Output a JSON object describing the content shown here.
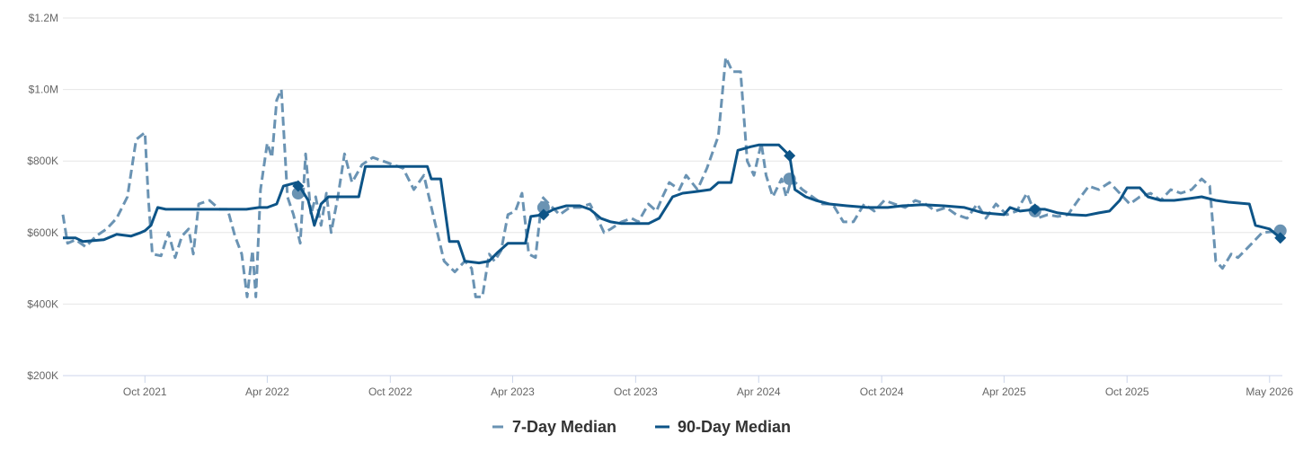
{
  "chart_data": {
    "type": "line",
    "title": "",
    "xlabel": "",
    "ylabel": "",
    "x_range": [
      "2021-06-01",
      "2026-05-20"
    ],
    "ylim": [
      200000,
      1200000
    ],
    "grid": "horizontal",
    "legend_position": "bottom-center",
    "y_ticks": [
      {
        "value": 200000,
        "label": "$200K"
      },
      {
        "value": 400000,
        "label": "$400K"
      },
      {
        "value": 600000,
        "label": "$600K"
      },
      {
        "value": 800000,
        "label": "$800K"
      },
      {
        "value": 1000000,
        "label": "$1.0M"
      },
      {
        "value": 1200000,
        "label": "$1.2M"
      }
    ],
    "x_ticks": [
      {
        "date": "2021-10-01",
        "label": "Oct 2021"
      },
      {
        "date": "2022-04-01",
        "label": "Apr 2022"
      },
      {
        "date": "2022-10-01",
        "label": "Oct 2022"
      },
      {
        "date": "2023-04-01",
        "label": "Apr 2023"
      },
      {
        "date": "2023-10-01",
        "label": "Oct 2023"
      },
      {
        "date": "2024-04-01",
        "label": "Apr 2024"
      },
      {
        "date": "2024-10-01",
        "label": "Oct 2024"
      },
      {
        "date": "2025-04-01",
        "label": "Apr 2025"
      },
      {
        "date": "2025-10-01",
        "label": "Oct 2025"
      },
      {
        "date": "2026-05-01",
        "label": "May 2026"
      }
    ],
    "series": [
      {
        "name": "7-Day Median",
        "color": "#6a93b3",
        "style": "dashed",
        "marker": "circle",
        "points": [
          [
            "2021-06-01",
            650000
          ],
          [
            "2021-06-08",
            570000
          ],
          [
            "2021-06-20",
            580000
          ],
          [
            "2021-07-05",
            560000
          ],
          [
            "2021-07-20",
            590000
          ],
          [
            "2021-08-05",
            610000
          ],
          [
            "2021-08-20",
            640000
          ],
          [
            "2021-09-05",
            700000
          ],
          [
            "2021-09-18",
            860000
          ],
          [
            "2021-10-01",
            880000
          ],
          [
            "2021-10-06",
            700000
          ],
          [
            "2021-10-12",
            540000
          ],
          [
            "2021-10-25",
            535000
          ],
          [
            "2021-11-05",
            600000
          ],
          [
            "2021-11-15",
            530000
          ],
          [
            "2021-11-25",
            590000
          ],
          [
            "2021-12-05",
            610000
          ],
          [
            "2021-12-12",
            540000
          ],
          [
            "2021-12-20",
            680000
          ],
          [
            "2022-01-05",
            690000
          ],
          [
            "2022-01-20",
            665000
          ],
          [
            "2022-02-01",
            665000
          ],
          [
            "2022-02-12",
            590000
          ],
          [
            "2022-02-22",
            540000
          ],
          [
            "2022-03-02",
            420000
          ],
          [
            "2022-03-10",
            550000
          ],
          [
            "2022-03-15",
            420000
          ],
          [
            "2022-03-22",
            720000
          ],
          [
            "2022-04-01",
            850000
          ],
          [
            "2022-04-08",
            810000
          ],
          [
            "2022-04-15",
            970000
          ],
          [
            "2022-04-22",
            1000000
          ],
          [
            "2022-05-01",
            700000
          ],
          [
            "2022-05-10",
            650000
          ],
          [
            "2022-05-20",
            570000
          ],
          [
            "2022-05-28",
            820000
          ],
          [
            "2022-06-05",
            650000
          ],
          [
            "2022-06-12",
            700000
          ],
          [
            "2022-06-20",
            620000
          ],
          [
            "2022-06-28",
            710000
          ],
          [
            "2022-07-05",
            600000
          ],
          [
            "2022-07-15",
            700000
          ],
          [
            "2022-07-25",
            820000
          ],
          [
            "2022-08-05",
            740000
          ],
          [
            "2022-08-20",
            790000
          ],
          [
            "2022-09-05",
            810000
          ],
          [
            "2022-09-20",
            800000
          ],
          [
            "2022-10-05",
            790000
          ],
          [
            "2022-10-20",
            780000
          ],
          [
            "2022-11-05",
            720000
          ],
          [
            "2022-11-20",
            760000
          ],
          [
            "2022-12-05",
            640000
          ],
          [
            "2022-12-20",
            520000
          ],
          [
            "2023-01-05",
            490000
          ],
          [
            "2023-01-20",
            520000
          ],
          [
            "2023-01-30",
            500000
          ],
          [
            "2023-02-05",
            420000
          ],
          [
            "2023-02-15",
            420000
          ],
          [
            "2023-02-25",
            540000
          ],
          [
            "2023-03-05",
            520000
          ],
          [
            "2023-03-15",
            550000
          ],
          [
            "2023-03-25",
            650000
          ],
          [
            "2023-04-05",
            660000
          ],
          [
            "2023-04-15",
            710000
          ],
          [
            "2023-04-25",
            540000
          ],
          [
            "2023-05-05",
            530000
          ],
          [
            "2023-05-15",
            700000
          ],
          [
            "2023-05-25",
            680000
          ],
          [
            "2023-06-10",
            650000
          ],
          [
            "2023-06-25",
            670000
          ],
          [
            "2023-07-10",
            670000
          ],
          [
            "2023-07-25",
            680000
          ],
          [
            "2023-08-05",
            640000
          ],
          [
            "2023-08-15",
            600000
          ],
          [
            "2023-08-25",
            610000
          ],
          [
            "2023-09-10",
            630000
          ],
          [
            "2023-09-25",
            640000
          ],
          [
            "2023-10-05",
            630000
          ],
          [
            "2023-10-20",
            680000
          ],
          [
            "2023-11-01",
            660000
          ],
          [
            "2023-11-10",
            700000
          ],
          [
            "2023-11-20",
            740000
          ],
          [
            "2023-12-05",
            720000
          ],
          [
            "2023-12-15",
            760000
          ],
          [
            "2024-01-01",
            720000
          ],
          [
            "2024-01-15",
            780000
          ],
          [
            "2024-02-01",
            870000
          ],
          [
            "2024-02-12",
            1090000
          ],
          [
            "2024-02-22",
            1050000
          ],
          [
            "2024-03-05",
            1050000
          ],
          [
            "2024-03-15",
            800000
          ],
          [
            "2024-03-25",
            760000
          ],
          [
            "2024-04-05",
            850000
          ],
          [
            "2024-04-12",
            760000
          ],
          [
            "2024-04-22",
            700000
          ],
          [
            "2024-05-05",
            750000
          ],
          [
            "2024-05-12",
            700000
          ],
          [
            "2024-05-20",
            750000
          ],
          [
            "2024-06-05",
            720000
          ],
          [
            "2024-06-20",
            700000
          ],
          [
            "2024-07-05",
            680000
          ],
          [
            "2024-07-20",
            680000
          ],
          [
            "2024-08-05",
            630000
          ],
          [
            "2024-08-20",
            630000
          ],
          [
            "2024-09-05",
            680000
          ],
          [
            "2024-09-20",
            660000
          ],
          [
            "2024-10-05",
            690000
          ],
          [
            "2024-10-20",
            680000
          ],
          [
            "2024-11-05",
            670000
          ],
          [
            "2024-11-20",
            690000
          ],
          [
            "2024-12-05",
            680000
          ],
          [
            "2024-12-20",
            660000
          ],
          [
            "2025-01-05",
            670000
          ],
          [
            "2025-01-20",
            650000
          ],
          [
            "2025-02-05",
            640000
          ],
          [
            "2025-02-20",
            680000
          ],
          [
            "2025-03-05",
            640000
          ],
          [
            "2025-03-20",
            680000
          ],
          [
            "2025-04-05",
            650000
          ],
          [
            "2025-04-20",
            660000
          ],
          [
            "2025-05-05",
            710000
          ],
          [
            "2025-05-20",
            640000
          ],
          [
            "2025-06-05",
            650000
          ],
          [
            "2025-06-20",
            645000
          ],
          [
            "2025-07-05",
            650000
          ],
          [
            "2025-07-20",
            690000
          ],
          [
            "2025-08-05",
            730000
          ],
          [
            "2025-08-20",
            720000
          ],
          [
            "2025-09-05",
            740000
          ],
          [
            "2025-09-20",
            710000
          ],
          [
            "2025-10-05",
            680000
          ],
          [
            "2025-10-20",
            700000
          ],
          [
            "2025-11-05",
            710000
          ],
          [
            "2025-11-20",
            690000
          ],
          [
            "2025-12-05",
            720000
          ],
          [
            "2025-12-20",
            710000
          ],
          [
            "2026-01-05",
            720000
          ],
          [
            "2026-01-20",
            750000
          ],
          [
            "2026-02-01",
            730000
          ],
          [
            "2026-02-10",
            520000
          ],
          [
            "2026-02-20",
            500000
          ],
          [
            "2026-03-05",
            540000
          ],
          [
            "2026-03-15",
            530000
          ],
          [
            "2026-04-05",
            570000
          ],
          [
            "2026-04-20",
            600000
          ],
          [
            "2026-05-20",
            605000
          ]
        ],
        "highlighted_points": [
          [
            "2022-05-17",
            710000
          ],
          [
            "2023-05-17",
            670000
          ],
          [
            "2024-05-17",
            750000
          ],
          [
            "2025-05-17",
            660000
          ],
          [
            "2026-05-17",
            605000
          ]
        ]
      },
      {
        "name": "90-Day Median",
        "color": "#0d5487",
        "style": "solid",
        "marker": "diamond",
        "points": [
          [
            "2021-06-01",
            585000
          ],
          [
            "2021-06-20",
            585000
          ],
          [
            "2021-07-01",
            575000
          ],
          [
            "2021-08-01",
            580000
          ],
          [
            "2021-08-20",
            595000
          ],
          [
            "2021-09-10",
            590000
          ],
          [
            "2021-09-25",
            600000
          ],
          [
            "2021-10-01",
            605000
          ],
          [
            "2021-10-10",
            620000
          ],
          [
            "2021-10-20",
            670000
          ],
          [
            "2021-11-01",
            665000
          ],
          [
            "2021-12-01",
            665000
          ],
          [
            "2022-01-01",
            665000
          ],
          [
            "2022-02-01",
            665000
          ],
          [
            "2022-03-01",
            665000
          ],
          [
            "2022-03-20",
            670000
          ],
          [
            "2022-04-01",
            670000
          ],
          [
            "2022-04-15",
            680000
          ],
          [
            "2022-04-25",
            730000
          ],
          [
            "2022-05-15",
            740000
          ],
          [
            "2022-05-22",
            720000
          ],
          [
            "2022-06-01",
            690000
          ],
          [
            "2022-06-10",
            620000
          ],
          [
            "2022-06-20",
            680000
          ],
          [
            "2022-07-01",
            700000
          ],
          [
            "2022-08-01",
            700000
          ],
          [
            "2022-08-15",
            700000
          ],
          [
            "2022-08-25",
            785000
          ],
          [
            "2022-10-01",
            785000
          ],
          [
            "2022-11-01",
            785000
          ],
          [
            "2022-11-25",
            785000
          ],
          [
            "2022-12-01",
            750000
          ],
          [
            "2022-12-15",
            750000
          ],
          [
            "2022-12-28",
            575000
          ],
          [
            "2023-01-10",
            575000
          ],
          [
            "2023-01-20",
            520000
          ],
          [
            "2023-02-10",
            515000
          ],
          [
            "2023-02-25",
            520000
          ],
          [
            "2023-03-10",
            545000
          ],
          [
            "2023-03-25",
            570000
          ],
          [
            "2023-04-20",
            570000
          ],
          [
            "2023-04-28",
            645000
          ],
          [
            "2023-05-17",
            650000
          ],
          [
            "2023-06-01",
            665000
          ],
          [
            "2023-06-20",
            675000
          ],
          [
            "2023-07-10",
            675000
          ],
          [
            "2023-07-25",
            665000
          ],
          [
            "2023-08-10",
            640000
          ],
          [
            "2023-08-25",
            630000
          ],
          [
            "2023-09-10",
            625000
          ],
          [
            "2023-10-01",
            625000
          ],
          [
            "2023-10-20",
            625000
          ],
          [
            "2023-11-05",
            640000
          ],
          [
            "2023-11-25",
            700000
          ],
          [
            "2023-12-10",
            710000
          ],
          [
            "2024-01-01",
            715000
          ],
          [
            "2024-01-20",
            720000
          ],
          [
            "2024-02-01",
            740000
          ],
          [
            "2024-02-20",
            740000
          ],
          [
            "2024-03-01",
            830000
          ],
          [
            "2024-03-20",
            840000
          ],
          [
            "2024-04-01",
            845000
          ],
          [
            "2024-05-01",
            845000
          ],
          [
            "2024-05-17",
            815000
          ],
          [
            "2024-05-25",
            720000
          ],
          [
            "2024-06-10",
            700000
          ],
          [
            "2024-06-25",
            690000
          ],
          [
            "2024-07-15",
            680000
          ],
          [
            "2024-08-10",
            675000
          ],
          [
            "2024-09-10",
            670000
          ],
          [
            "2024-10-10",
            670000
          ],
          [
            "2024-11-01",
            675000
          ],
          [
            "2024-12-01",
            678000
          ],
          [
            "2025-01-01",
            675000
          ],
          [
            "2025-02-01",
            670000
          ],
          [
            "2025-03-01",
            655000
          ],
          [
            "2025-04-01",
            650000
          ],
          [
            "2025-04-10",
            670000
          ],
          [
            "2025-04-25",
            660000
          ],
          [
            "2025-05-17",
            665000
          ],
          [
            "2025-06-01",
            665000
          ],
          [
            "2025-06-20",
            655000
          ],
          [
            "2025-07-10",
            650000
          ],
          [
            "2025-08-01",
            648000
          ],
          [
            "2025-08-20",
            655000
          ],
          [
            "2025-09-05",
            660000
          ],
          [
            "2025-09-20",
            690000
          ],
          [
            "2025-10-01",
            725000
          ],
          [
            "2025-10-20",
            725000
          ],
          [
            "2025-11-01",
            700000
          ],
          [
            "2025-11-20",
            690000
          ],
          [
            "2025-12-10",
            690000
          ],
          [
            "2026-01-01",
            695000
          ],
          [
            "2026-01-20",
            700000
          ],
          [
            "2026-02-10",
            690000
          ],
          [
            "2026-03-01",
            685000
          ],
          [
            "2026-04-01",
            680000
          ],
          [
            "2026-04-10",
            620000
          ],
          [
            "2026-05-01",
            610000
          ],
          [
            "2026-05-17",
            585000
          ]
        ],
        "highlighted_points": [
          [
            "2022-05-17",
            730000
          ],
          [
            "2023-05-17",
            650000
          ],
          [
            "2024-05-17",
            815000
          ],
          [
            "2025-05-17",
            665000
          ],
          [
            "2026-05-17",
            585000
          ]
        ]
      }
    ]
  }
}
